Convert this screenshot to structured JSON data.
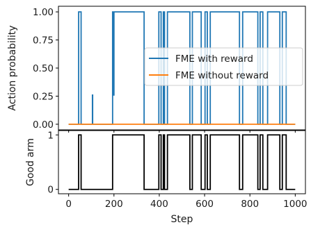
{
  "chart_data": [
    {
      "type": "line",
      "ylabel": "Action probability",
      "xlabel": "",
      "xlim": [
        -45,
        1045
      ],
      "ylim": [
        -0.05,
        1.05
      ],
      "xticks": [
        0,
        200,
        400,
        600,
        800,
        1000
      ],
      "yticks": [
        0.0,
        0.25,
        0.5,
        0.75,
        1.0
      ],
      "ytick_labels": [
        "0.00",
        "0.25",
        "0.50",
        "0.75",
        "1.00"
      ],
      "show_xtick_labels": false,
      "legend": "right",
      "series": [
        {
          "name": "FME with reward",
          "color": "#1f77b4",
          "x": [
            0,
            44,
            44,
            55,
            55,
            105,
            105,
            106,
            106,
            194,
            194,
            198,
            198,
            200,
            200,
            333,
            333,
            398,
            398,
            408,
            408,
            418,
            418,
            423,
            423,
            436,
            436,
            535,
            535,
            546,
            546,
            585,
            585,
            602,
            602,
            612,
            612,
            625,
            625,
            754,
            754,
            768,
            768,
            835,
            835,
            845,
            845,
            857,
            857,
            878,
            878,
            932,
            932,
            943,
            943,
            960,
            960,
            1000
          ],
          "y": [
            0,
            0,
            1,
            1,
            0,
            0,
            0.26,
            0.26,
            0,
            0,
            1,
            1,
            0.26,
            0.26,
            1,
            1,
            0,
            0,
            1,
            1,
            0,
            0,
            1,
            1,
            0,
            0,
            1,
            1,
            0,
            0,
            1,
            1,
            0,
            0,
            1,
            1,
            0,
            0,
            1,
            1,
            0,
            0,
            1,
            1,
            0,
            0,
            1,
            1,
            0,
            0,
            1,
            1,
            0,
            0,
            1,
            1,
            0,
            0
          ]
        },
        {
          "name": "FME without reward",
          "color": "#ff7f0e",
          "x": [
            0,
            1000
          ],
          "y": [
            0,
            0
          ]
        }
      ]
    },
    {
      "type": "line",
      "ylabel": "Good arm",
      "xlabel": "Step",
      "xlim": [
        -45,
        1045
      ],
      "ylim": [
        -0.08,
        1.08
      ],
      "xticks": [
        0,
        200,
        400,
        600,
        800,
        1000
      ],
      "yticks": [
        0,
        1
      ],
      "ytick_labels": [
        "0",
        "1"
      ],
      "show_xtick_labels": true,
      "series": [
        {
          "color": "#000000",
          "x": [
            0,
            44,
            44,
            55,
            55,
            194,
            194,
            333,
            333,
            398,
            398,
            408,
            408,
            418,
            418,
            423,
            423,
            436,
            436,
            535,
            535,
            546,
            546,
            585,
            585,
            602,
            602,
            612,
            612,
            625,
            625,
            754,
            754,
            768,
            768,
            835,
            835,
            845,
            845,
            857,
            857,
            878,
            878,
            932,
            932,
            943,
            943,
            960,
            960,
            1000
          ],
          "y": [
            0,
            0,
            1,
            1,
            0,
            0,
            1,
            1,
            0,
            0,
            1,
            1,
            0,
            0,
            1,
            1,
            0,
            0,
            1,
            1,
            0,
            0,
            1,
            1,
            0,
            0,
            1,
            1,
            0,
            0,
            1,
            1,
            0,
            0,
            1,
            1,
            0,
            0,
            1,
            1,
            0,
            0,
            1,
            1,
            0,
            0,
            1,
            1,
            0,
            0
          ]
        }
      ]
    }
  ]
}
